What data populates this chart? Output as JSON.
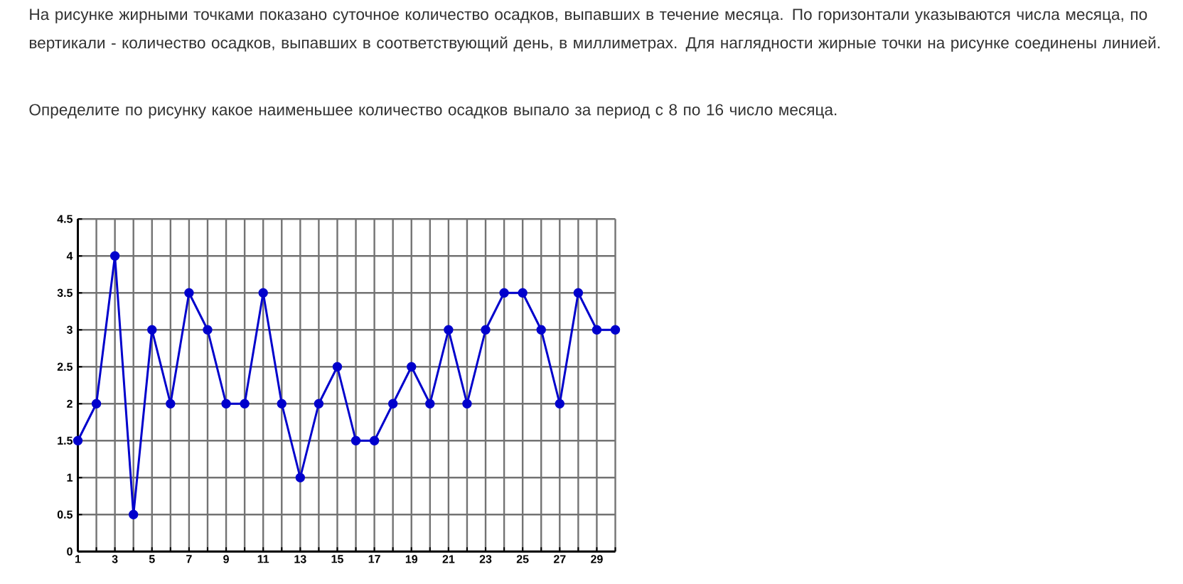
{
  "chart_data": {
    "type": "line",
    "title": "На рисунке жирными точками показано суточное количество осадков, выпавших в течение месяца. По горизонтали указываются числа месяца, по вертикали - количество осадков, выпавших в соответствующий день, в миллиметрах. Для наглядности жирные точки на рисунке соединены линией.",
    "subtitle": "Определите по рисунку какое наименьшее количество осадков выпало за период с 8 по 16 число месяца.",
    "x": [
      1,
      2,
      3,
      4,
      5,
      6,
      7,
      8,
      9,
      10,
      11,
      12,
      13,
      14,
      15,
      16,
      17,
      18,
      19,
      20,
      21,
      22,
      23,
      24,
      25,
      26,
      27,
      28,
      29,
      30
    ],
    "values": [
      1.5,
      2,
      4,
      0.5,
      3,
      2,
      3.5,
      3,
      2,
      2,
      3.5,
      2,
      1,
      2,
      2.5,
      1.5,
      1.5,
      2,
      2.5,
      2,
      3,
      2,
      3,
      3.5,
      3.5,
      3,
      2,
      3.5,
      3,
      3
    ],
    "color": "#0000cc",
    "marker": "circle",
    "line_style": "solid",
    "grid": true,
    "xlim": [
      1,
      30
    ],
    "xticks": [
      1,
      {
        "value": 2,
        "label": null
      },
      3,
      {
        "value": 4,
        "label": null
      },
      5,
      {
        "value": 6,
        "label": null
      },
      7,
      {
        "value": 8,
        "label": null
      },
      9,
      {
        "value": 10,
        "label": null
      },
      11,
      {
        "value": 12,
        "label": null
      },
      13,
      {
        "value": 14,
        "label": null
      },
      15,
      {
        "value": 16,
        "label": null
      },
      17,
      {
        "value": 18,
        "label": null
      },
      19,
      {
        "value": 20,
        "label": null
      },
      21,
      {
        "value": 22,
        "label": null
      },
      23,
      {
        "value": 24,
        "label": null
      },
      25,
      {
        "value": 26,
        "label": null
      },
      27,
      {
        "value": 28,
        "label": null
      },
      29,
      {
        "value": 30,
        "label": null
      }
    ],
    "ylim": [
      0,
      4.5
    ],
    "yticks": [
      0,
      0.5,
      1,
      1.5,
      2,
      2.5,
      3,
      3.5,
      4,
      4.5
    ]
  }
}
